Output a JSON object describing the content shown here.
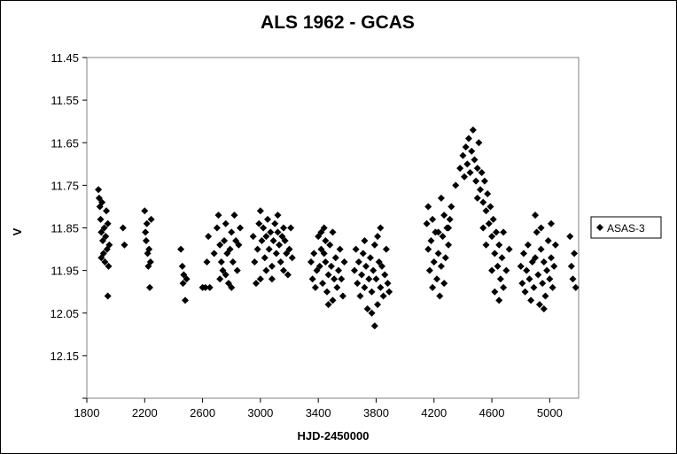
{
  "chart_data": {
    "type": "scatter",
    "title": "ALS 1962 - GCAS",
    "xlabel": "HJD-2450000",
    "ylabel": "V",
    "xlim": [
      1800,
      5200
    ],
    "ylim": [
      12.25,
      11.45
    ],
    "y_inverted": true,
    "grid": false,
    "legend_placement": "right",
    "marker": "diamond",
    "marker_color": "#000000",
    "x_ticks": [
      "1800",
      "2200",
      "2600",
      "3000",
      "3400",
      "3800",
      "4200",
      "4600",
      "5000"
    ],
    "y_ticks": [
      "11.45",
      "11.55",
      "11.65",
      "11.75",
      "11.85",
      "11.95",
      "12.05",
      "12.15"
    ],
    "series": [
      {
        "name": "ASAS-3",
        "points": [
          [
            1880,
            11.76
          ],
          [
            1885,
            11.78
          ],
          [
            1890,
            11.8
          ],
          [
            1895,
            11.83
          ],
          [
            1900,
            11.86
          ],
          [
            1905,
            11.79
          ],
          [
            1910,
            11.88
          ],
          [
            1915,
            11.91
          ],
          [
            1920,
            11.85
          ],
          [
            1925,
            11.93
          ],
          [
            1930,
            11.87
          ],
          [
            1935,
            11.81
          ],
          [
            1940,
            11.9
          ],
          [
            1945,
            11.84
          ],
          [
            1950,
            11.94
          ],
          [
            1955,
            11.89
          ],
          [
            1945,
            12.01
          ],
          [
            1900,
            11.92
          ],
          [
            2050,
            11.85
          ],
          [
            2060,
            11.89
          ],
          [
            2200,
            11.81
          ],
          [
            2205,
            11.86
          ],
          [
            2210,
            11.88
          ],
          [
            2215,
            11.84
          ],
          [
            2220,
            11.91
          ],
          [
            2225,
            11.94
          ],
          [
            2230,
            11.9
          ],
          [
            2235,
            11.99
          ],
          [
            2240,
            11.93
          ],
          [
            2245,
            11.83
          ],
          [
            2450,
            11.9
          ],
          [
            2460,
            11.94
          ],
          [
            2465,
            11.98
          ],
          [
            2470,
            11.96
          ],
          [
            2480,
            12.02
          ],
          [
            2490,
            11.97
          ],
          [
            2600,
            11.99
          ],
          [
            2620,
            11.99
          ],
          [
            2630,
            11.93
          ],
          [
            2640,
            11.87
          ],
          [
            2650,
            11.99
          ],
          [
            2680,
            11.91
          ],
          [
            2700,
            11.85
          ],
          [
            2710,
            11.82
          ],
          [
            2720,
            11.89
          ],
          [
            2730,
            11.93
          ],
          [
            2740,
            11.95
          ],
          [
            2750,
            11.88
          ],
          [
            2760,
            11.84
          ],
          [
            2770,
            11.91
          ],
          [
            2780,
            11.98
          ],
          [
            2790,
            11.9
          ],
          [
            2800,
            11.86
          ],
          [
            2810,
            11.93
          ],
          [
            2820,
            11.82
          ],
          [
            2830,
            11.88
          ],
          [
            2840,
            11.95
          ],
          [
            2850,
            11.89
          ],
          [
            2860,
            11.85
          ],
          [
            2720,
            11.97
          ],
          [
            2760,
            11.96
          ],
          [
            2800,
            11.99
          ],
          [
            2950,
            11.87
          ],
          [
            2960,
            11.93
          ],
          [
            2970,
            11.98
          ],
          [
            2980,
            11.9
          ],
          [
            2990,
            11.84
          ],
          [
            3000,
            11.81
          ],
          [
            3010,
            11.88
          ],
          [
            3020,
            11.85
          ],
          [
            3030,
            11.92
          ],
          [
            3040,
            11.87
          ],
          [
            3050,
            11.83
          ],
          [
            3060,
            11.9
          ],
          [
            3070,
            11.86
          ],
          [
            3080,
            11.94
          ],
          [
            3090,
            11.88
          ],
          [
            3100,
            11.84
          ],
          [
            3110,
            11.91
          ],
          [
            3120,
            11.86
          ],
          [
            3130,
            11.89
          ],
          [
            3140,
            11.93
          ],
          [
            3150,
            11.87
          ],
          [
            3160,
            11.95
          ],
          [
            3170,
            11.88
          ],
          [
            3180,
            11.91
          ],
          [
            3190,
            11.96
          ],
          [
            3200,
            11.9
          ],
          [
            3210,
            11.85
          ],
          [
            3220,
            11.92
          ],
          [
            3000,
            11.97
          ],
          [
            3040,
            11.95
          ],
          [
            3080,
            11.97
          ],
          [
            3120,
            11.82
          ],
          [
            3160,
            11.85
          ],
          [
            3350,
            11.93
          ],
          [
            3360,
            11.97
          ],
          [
            3370,
            11.91
          ],
          [
            3380,
            11.99
          ],
          [
            3390,
            11.95
          ],
          [
            3400,
            11.87
          ],
          [
            3410,
            11.94
          ],
          [
            3420,
            11.9
          ],
          [
            3430,
            11.98
          ],
          [
            3440,
            11.85
          ],
          [
            3450,
            11.93
          ],
          [
            3460,
            12.0
          ],
          [
            3470,
            11.96
          ],
          [
            3480,
            11.89
          ],
          [
            3490,
            11.94
          ],
          [
            3500,
            12.02
          ],
          [
            3510,
            11.97
          ],
          [
            3520,
            11.92
          ],
          [
            3530,
            11.99
          ],
          [
            3540,
            11.95
          ],
          [
            3550,
            11.9
          ],
          [
            3560,
            11.97
          ],
          [
            3570,
            12.01
          ],
          [
            3580,
            11.93
          ],
          [
            3420,
            11.86
          ],
          [
            3450,
            11.88
          ],
          [
            3470,
            12.03
          ],
          [
            3500,
            11.86
          ],
          [
            3440,
            11.91
          ],
          [
            3650,
            11.95
          ],
          [
            3660,
            11.9
          ],
          [
            3670,
            11.98
          ],
          [
            3680,
            11.93
          ],
          [
            3690,
            12.01
          ],
          [
            3700,
            11.96
          ],
          [
            3710,
            11.91
          ],
          [
            3720,
            11.99
          ],
          [
            3730,
            11.94
          ],
          [
            3740,
            12.04
          ],
          [
            3750,
            11.97
          ],
          [
            3760,
            11.92
          ],
          [
            3770,
            12.0
          ],
          [
            3780,
            11.95
          ],
          [
            3790,
            11.89
          ],
          [
            3800,
            11.97
          ],
          [
            3810,
            12.03
          ],
          [
            3820,
            11.93
          ],
          [
            3830,
            11.99
          ],
          [
            3840,
            11.94
          ],
          [
            3850,
            12.01
          ],
          [
            3860,
            11.96
          ],
          [
            3870,
            11.9
          ],
          [
            3880,
            11.98
          ],
          [
            3890,
            12.0
          ],
          [
            3790,
            12.08
          ],
          [
            3770,
            12.05
          ],
          [
            3810,
            11.87
          ],
          [
            3720,
            11.88
          ],
          [
            3830,
            11.85
          ],
          [
            4150,
            11.84
          ],
          [
            4160,
            11.9
          ],
          [
            4170,
            11.95
          ],
          [
            4180,
            11.88
          ],
          [
            4190,
            11.99
          ],
          [
            4200,
            11.93
          ],
          [
            4210,
            11.86
          ],
          [
            4220,
            11.97
          ],
          [
            4230,
            11.91
          ],
          [
            4240,
            12.01
          ],
          [
            4250,
            11.94
          ],
          [
            4260,
            11.87
          ],
          [
            4270,
            11.98
          ],
          [
            4280,
            11.92
          ],
          [
            4290,
            11.85
          ],
          [
            4300,
            11.89
          ],
          [
            4310,
            11.83
          ],
          [
            4320,
            11.8
          ],
          [
            4160,
            11.8
          ],
          [
            4190,
            11.83
          ],
          [
            4230,
            11.86
          ],
          [
            4270,
            11.82
          ],
          [
            4300,
            11.85
          ],
          [
            4250,
            11.78
          ],
          [
            4350,
            11.75
          ],
          [
            4380,
            11.71
          ],
          [
            4400,
            11.68
          ],
          [
            4410,
            11.73
          ],
          [
            4420,
            11.66
          ],
          [
            4430,
            11.7
          ],
          [
            4440,
            11.64
          ],
          [
            4450,
            11.72
          ],
          [
            4460,
            11.67
          ],
          [
            4470,
            11.62
          ],
          [
            4480,
            11.69
          ],
          [
            4490,
            11.74
          ],
          [
            4500,
            11.71
          ],
          [
            4510,
            11.65
          ],
          [
            4520,
            11.76
          ],
          [
            4530,
            11.72
          ],
          [
            4540,
            11.79
          ],
          [
            4550,
            11.74
          ],
          [
            4560,
            11.81
          ],
          [
            4570,
            11.77
          ],
          [
            4580,
            11.84
          ],
          [
            4590,
            11.8
          ],
          [
            4600,
            11.87
          ],
          [
            4610,
            11.83
          ],
          [
            4620,
            11.91
          ],
          [
            4630,
            11.86
          ],
          [
            4640,
            11.94
          ],
          [
            4650,
            11.89
          ],
          [
            4660,
            11.97
          ],
          [
            4670,
            11.92
          ],
          [
            4680,
            11.99
          ],
          [
            4700,
            11.95
          ],
          [
            4720,
            11.9
          ],
          [
            4600,
            11.95
          ],
          [
            4620,
            12.0
          ],
          [
            4650,
            12.02
          ],
          [
            4680,
            11.86
          ],
          [
            4560,
            11.89
          ],
          [
            4540,
            11.85
          ],
          [
            4500,
            11.78
          ],
          [
            4800,
            11.94
          ],
          [
            4810,
            11.98
          ],
          [
            4820,
            11.91
          ],
          [
            4830,
            12.0
          ],
          [
            4840,
            11.95
          ],
          [
            4850,
            11.89
          ],
          [
            4860,
            11.97
          ],
          [
            4870,
            12.02
          ],
          [
            4880,
            11.93
          ],
          [
            4890,
            11.99
          ],
          [
            4900,
            11.92
          ],
          [
            4910,
            11.86
          ],
          [
            4920,
            11.96
          ],
          [
            4930,
            12.03
          ],
          [
            4940,
            11.9
          ],
          [
            4950,
            11.98
          ],
          [
            4960,
            11.93
          ],
          [
            4970,
            12.01
          ],
          [
            4980,
            11.95
          ],
          [
            4990,
            11.88
          ],
          [
            5000,
            11.97
          ],
          [
            5010,
            11.92
          ],
          [
            5020,
            11.99
          ],
          [
            5030,
            11.94
          ],
          [
            5040,
            11.89
          ],
          [
            4900,
            11.82
          ],
          [
            4960,
            12.04
          ],
          [
            4940,
            11.85
          ],
          [
            5010,
            11.84
          ],
          [
            5140,
            11.87
          ],
          [
            5150,
            11.94
          ],
          [
            5160,
            11.97
          ],
          [
            5170,
            11.91
          ],
          [
            5180,
            11.99
          ]
        ]
      }
    ]
  }
}
